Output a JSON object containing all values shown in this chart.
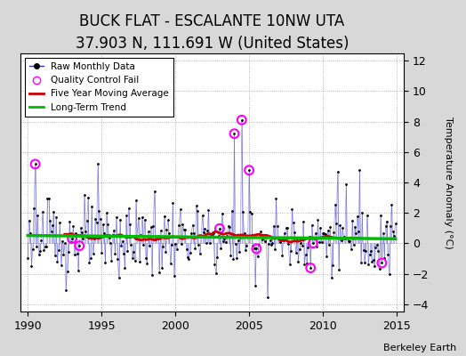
{
  "title": "BUCK FLAT - ESCALANTE 10NW UTA",
  "subtitle": "37.903 N, 111.691 W (United States)",
  "ylabel": "Temperature Anomaly (°C)",
  "credit": "Berkeley Earth",
  "xlim": [
    1989.5,
    2015.5
  ],
  "ylim": [
    -4.5,
    12.5
  ],
  "yticks": [
    -4,
    -2,
    0,
    2,
    4,
    6,
    8,
    10,
    12
  ],
  "xticks": [
    1990,
    1995,
    2000,
    2005,
    2010,
    2015
  ],
  "fig_bg_color": "#d8d8d8",
  "ax_bg_color": "#ffffff",
  "line_color": "#3333cc",
  "stem_color": "#aaaaee",
  "ma_color": "#cc0000",
  "trend_color": "#00bb00",
  "qc_color": "#ff00ff",
  "title_fontsize": 12,
  "subtitle_fontsize": 9,
  "seed": 123
}
